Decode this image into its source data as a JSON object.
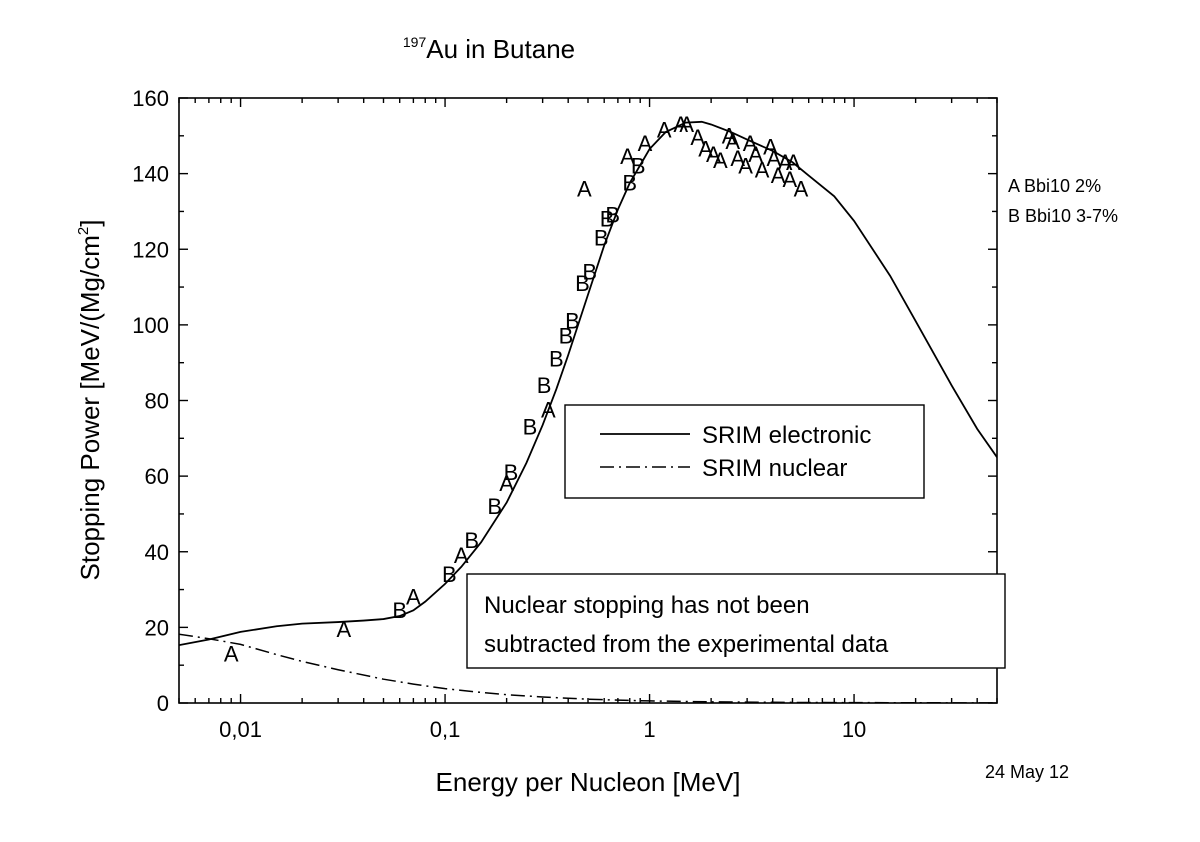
{
  "chart_data": {
    "type": "scatter",
    "title_superscript": "197",
    "title": "Au in Butane",
    "xlabel": "Energy per Nucleon [MeV]",
    "ylabel_main": "Stopping Power [MeV/(Mg/cm",
    "ylabel_sup": "2",
    "ylabel_end": "]",
    "x_scale": "log",
    "xlim": [
      0.005,
      50
    ],
    "ylim": [
      0,
      160
    ],
    "x_ticks": [
      {
        "value": 0.01,
        "label": "0,01"
      },
      {
        "value": 0.1,
        "label": "0,1"
      },
      {
        "value": 1,
        "label": "1"
      },
      {
        "value": 10,
        "label": "10"
      }
    ],
    "y_ticks": [
      {
        "value": 0,
        "label": "0"
      },
      {
        "value": 20,
        "label": "20"
      },
      {
        "value": 40,
        "label": "40"
      },
      {
        "value": 60,
        "label": "60"
      },
      {
        "value": 80,
        "label": "80"
      },
      {
        "value": 100,
        "label": "100"
      },
      {
        "value": 120,
        "label": "120"
      },
      {
        "value": 140,
        "label": "140"
      },
      {
        "value": 160,
        "label": "160"
      }
    ],
    "lines": [
      {
        "name": "SRIM electronic",
        "style": "solid",
        "points": [
          [
            0.005,
            15.3
          ],
          [
            0.007,
            16.8
          ],
          [
            0.01,
            18.8
          ],
          [
            0.015,
            20.3
          ],
          [
            0.02,
            21.0
          ],
          [
            0.03,
            21.4
          ],
          [
            0.04,
            21.8
          ],
          [
            0.05,
            22.2
          ],
          [
            0.06,
            23.0
          ],
          [
            0.07,
            24.5
          ],
          [
            0.08,
            26.8
          ],
          [
            0.1,
            31.5
          ],
          [
            0.12,
            36.0
          ],
          [
            0.15,
            42.5
          ],
          [
            0.2,
            53.0
          ],
          [
            0.25,
            63.5
          ],
          [
            0.3,
            73.5
          ],
          [
            0.35,
            83.0
          ],
          [
            0.4,
            92.0
          ],
          [
            0.5,
            108.0
          ],
          [
            0.6,
            121.0
          ],
          [
            0.7,
            130.5
          ],
          [
            0.8,
            137.5
          ],
          [
            1.0,
            146.5
          ],
          [
            1.2,
            151.0
          ],
          [
            1.5,
            153.5
          ],
          [
            1.8,
            153.7
          ],
          [
            2.0,
            153.0
          ],
          [
            2.5,
            151.0
          ],
          [
            3.0,
            149.0
          ],
          [
            4.0,
            146.0
          ],
          [
            5.0,
            143.0
          ],
          [
            6.0,
            139.5
          ],
          [
            8.0,
            134.0
          ],
          [
            10.0,
            127.5
          ],
          [
            15.0,
            113.0
          ],
          [
            20.0,
            101.0
          ],
          [
            30.0,
            84.0
          ],
          [
            40.0,
            72.5
          ],
          [
            50.0,
            65.0
          ]
        ]
      },
      {
        "name": "SRIM nuclear",
        "style": "dash-dot",
        "points": [
          [
            0.005,
            18.2
          ],
          [
            0.007,
            17.0
          ],
          [
            0.01,
            15.5
          ],
          [
            0.015,
            12.8
          ],
          [
            0.02,
            11.0
          ],
          [
            0.03,
            8.8
          ],
          [
            0.05,
            6.3
          ],
          [
            0.07,
            5.0
          ],
          [
            0.1,
            3.8
          ],
          [
            0.15,
            2.8
          ],
          [
            0.2,
            2.2
          ],
          [
            0.3,
            1.6
          ],
          [
            0.5,
            1.0
          ],
          [
            0.7,
            0.75
          ],
          [
            1.0,
            0.55
          ],
          [
            2.0,
            0.3
          ],
          [
            5.0,
            0.15
          ],
          [
            10.0,
            0.1
          ],
          [
            20.0,
            0.06
          ],
          [
            50.0,
            0.03
          ]
        ]
      }
    ],
    "series": [
      {
        "name": "A",
        "marker": "A",
        "legend_label": "A Bbi10 2%",
        "points": [
          [
            0.009,
            13
          ],
          [
            0.032,
            19.5
          ],
          [
            0.07,
            28
          ],
          [
            0.12,
            39
          ],
          [
            0.2,
            58
          ],
          [
            0.32,
            77.5
          ],
          [
            0.48,
            136
          ],
          [
            0.78,
            144.5
          ],
          [
            0.95,
            148
          ],
          [
            1.18,
            151.5
          ],
          [
            1.42,
            153
          ],
          [
            1.52,
            153
          ],
          [
            1.72,
            149.5
          ],
          [
            1.88,
            146.5
          ],
          [
            2.05,
            145
          ],
          [
            2.22,
            143.5
          ],
          [
            2.45,
            150
          ],
          [
            2.55,
            148.5
          ],
          [
            2.7,
            144
          ],
          [
            2.95,
            142
          ],
          [
            3.1,
            148
          ],
          [
            3.3,
            145
          ],
          [
            3.55,
            141
          ],
          [
            3.9,
            147
          ],
          [
            4.05,
            144
          ],
          [
            4.25,
            139.5
          ],
          [
            4.6,
            143
          ],
          [
            4.85,
            138.5
          ],
          [
            5.05,
            143
          ],
          [
            5.5,
            136
          ]
        ]
      },
      {
        "name": "B",
        "marker": "B",
        "legend_label": "B Bbi10 3-7%",
        "points": [
          [
            0.06,
            24.5
          ],
          [
            0.105,
            34
          ],
          [
            0.135,
            43
          ],
          [
            0.175,
            52
          ],
          [
            0.21,
            61
          ],
          [
            0.26,
            73
          ],
          [
            0.305,
            84
          ],
          [
            0.35,
            91
          ],
          [
            0.39,
            97
          ],
          [
            0.42,
            101
          ],
          [
            0.47,
            111
          ],
          [
            0.51,
            114
          ],
          [
            0.58,
            123
          ],
          [
            0.62,
            128
          ],
          [
            0.66,
            129
          ],
          [
            0.8,
            137.5
          ],
          [
            0.88,
            142
          ]
        ]
      }
    ],
    "legend_lines": [
      {
        "label": "SRIM electronic",
        "style": "solid"
      },
      {
        "label": "SRIM nuclear",
        "style": "dash-dot"
      }
    ],
    "legend_markers": [
      "A Bbi10 2%",
      "B Bbi10 3-7%"
    ],
    "annotation_line1": "Nuclear stopping has not been",
    "annotation_line2": "subtracted from the experimental data",
    "date": "24 May 12"
  }
}
